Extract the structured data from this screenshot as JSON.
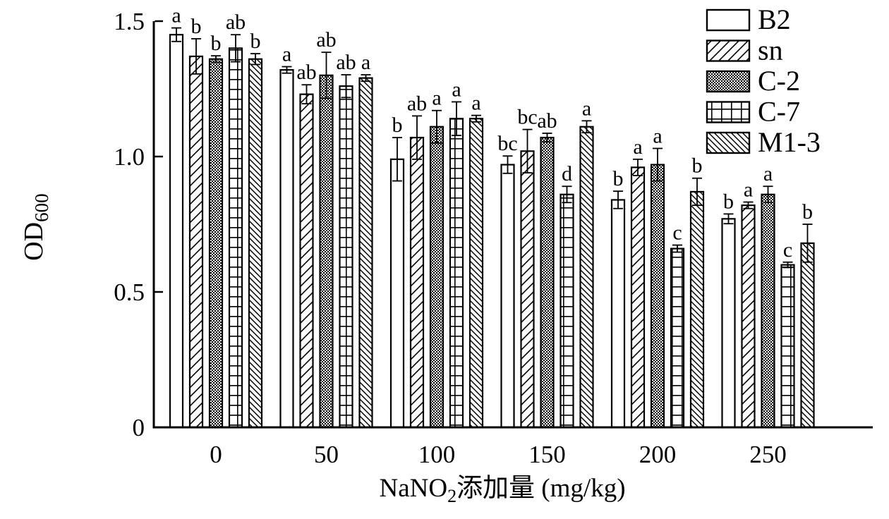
{
  "chart_data": {
    "type": "bar",
    "title": "",
    "xlabel": {
      "main": "NaNO",
      "sub": "2",
      "rest": "添加量 (mg/kg)"
    },
    "ylabel": {
      "main": "OD",
      "sub": "600"
    },
    "categories": [
      "0",
      "50",
      "100",
      "150",
      "200",
      "250"
    ],
    "yticks": [
      {
        "label": "0",
        "value": 0.0
      },
      {
        "label": "0.5",
        "value": 0.5
      },
      {
        "label": "1.0",
        "value": 1.0
      },
      {
        "label": "1.5",
        "value": 1.5
      }
    ],
    "ylim": [
      0,
      1.5
    ],
    "grid": false,
    "legend_position": "top-right-inside",
    "bar_color": "#ffffff",
    "line_color": "#000000",
    "series": [
      {
        "name": "B2",
        "pattern": "plain",
        "values": [
          1.45,
          1.32,
          0.99,
          0.97,
          0.84,
          0.77
        ],
        "errors": [
          0.025,
          0.012,
          0.08,
          0.032,
          0.032,
          0.018
        ],
        "letters": [
          "a",
          "a",
          "b",
          "bc",
          "b",
          "b"
        ]
      },
      {
        "name": "sn",
        "pattern": "hatch-forward",
        "values": [
          1.37,
          1.23,
          1.07,
          1.02,
          0.96,
          0.82
        ],
        "errors": [
          0.065,
          0.035,
          0.08,
          0.08,
          0.03,
          0.012
        ],
        "letters": [
          "b",
          "ab",
          "ab",
          "bc",
          "a",
          "a"
        ]
      },
      {
        "name": "C-2",
        "pattern": "checker",
        "values": [
          1.36,
          1.3,
          1.11,
          1.07,
          0.97,
          0.86
        ],
        "errors": [
          0.012,
          0.085,
          0.06,
          0.016,
          0.06,
          0.03
        ],
        "letters": [
          "b",
          "ab",
          "a",
          "ab",
          "a",
          "a"
        ]
      },
      {
        "name": "C-7",
        "pattern": "grid",
        "values": [
          1.4,
          1.26,
          1.14,
          0.86,
          0.66,
          0.6
        ],
        "errors": [
          0.05,
          0.042,
          0.062,
          0.03,
          0.013,
          0.01
        ],
        "letters": [
          "ab",
          "ab",
          "a",
          "d",
          "c",
          "c"
        ]
      },
      {
        "name": "M1-3",
        "pattern": "hatch-back",
        "values": [
          1.36,
          1.29,
          1.14,
          1.11,
          0.87,
          0.68
        ],
        "errors": [
          0.02,
          0.012,
          0.012,
          0.022,
          0.05,
          0.07
        ],
        "letters": [
          "b",
          "a",
          "a",
          "a",
          "b",
          "b"
        ]
      }
    ]
  }
}
